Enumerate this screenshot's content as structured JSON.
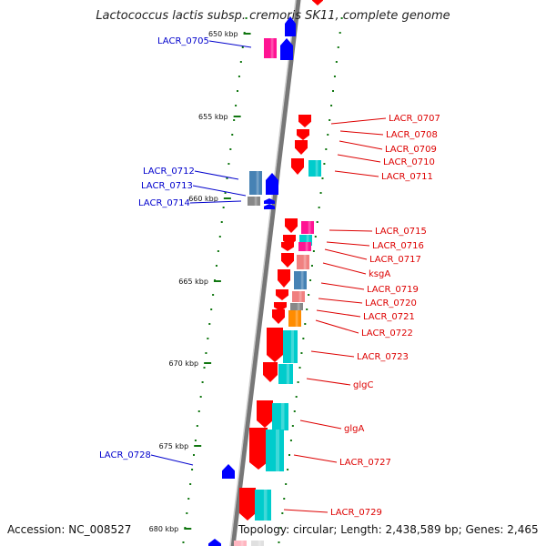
{
  "title": "Lactococcus lactis subsp. cremoris SK11, complete genome",
  "footer": {
    "accession": "Accession: NC_008527",
    "topology": "Topology: circular; Length: 2,438,589 bp; Genes: 2,465"
  },
  "colors": {
    "forward_label": "#0000cc",
    "reverse_label": "#dd0000",
    "backbone": "#777777",
    "tick": "#117711",
    "cds_red": "#ff0000",
    "cds_blue": "#0000ff",
    "cog_cyan": "#00cccc",
    "cog_magenta": "#ff1493",
    "cog_steelblue": "#4682b4",
    "cog_pink": "#f08080",
    "cog_orange": "#ff8c00",
    "cog_gray": "#888888"
  },
  "kbp_ticks": [
    "650 kbp",
    "655 kbp",
    "660 kbp",
    "665 kbp",
    "670 kbp",
    "675 kbp",
    "680 kbp"
  ],
  "forward_labels": [
    "LACR_0705",
    "LACR_0712",
    "LACR_0713",
    "LACR_0714",
    "LACR_0728"
  ],
  "reverse_labels": [
    "LACR_0707",
    "LACR_0708",
    "LACR_0709",
    "LACR_0710",
    "LACR_0711",
    "LACR_0715",
    "LACR_0716",
    "LACR_0717",
    "ksgA",
    "LACR_0719",
    "LACR_0720",
    "LACR_0721",
    "LACR_0722",
    "LACR_0723",
    "glgC",
    "glgA",
    "LACR_0727",
    "LACR_0729"
  ]
}
